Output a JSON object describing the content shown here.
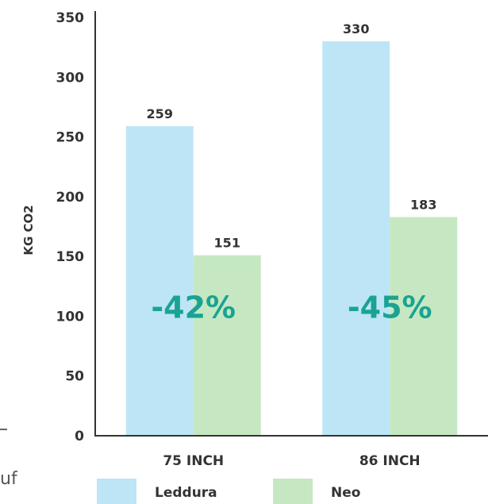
{
  "chart_data": {
    "type": "bar",
    "title": "",
    "xlabel": "",
    "ylabel": "KG CO2",
    "ylim": [
      0,
      350
    ],
    "yticks": [
      0,
      50,
      100,
      150,
      200,
      250,
      300,
      350
    ],
    "grid": false,
    "legend_position": "bottom",
    "categories": [
      "75 INCH",
      "86 INCH"
    ],
    "series": [
      {
        "name": "Leddura",
        "values": [
          259,
          330
        ],
        "color": "#bde5f5"
      },
      {
        "name": "Neo",
        "values": [
          151,
          183
        ],
        "color": "#c5e8c3"
      }
    ],
    "annotations": [
      {
        "category": "75 INCH",
        "text": "-42%"
      },
      {
        "category": "86 INCH",
        "text": "-45%"
      }
    ],
    "annotation_color": "#1aa393"
  },
  "fragments": {
    "left_edge_text": "uf"
  }
}
